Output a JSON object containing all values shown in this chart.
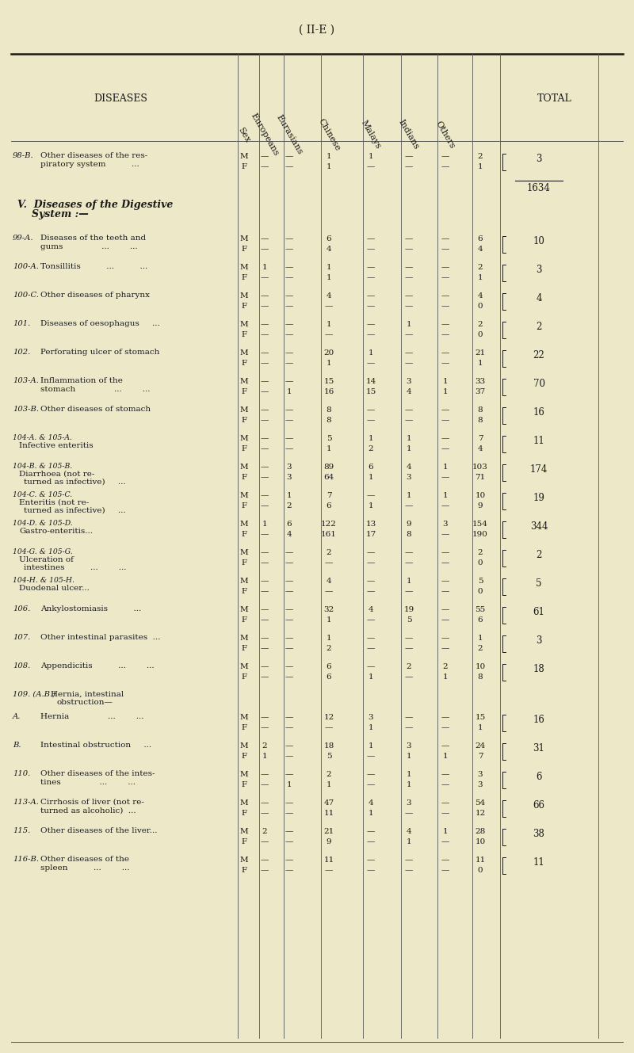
{
  "page_title": "( II-E )",
  "bg_color": "#ede8c8",
  "rows": [
    {
      "code": "98-B.",
      "disease": [
        "Other diseases of the res-",
        "    piratory system          ..."
      ],
      "bold": false,
      "M": [
        "—",
        "—",
        "1",
        "1",
        "—",
        "—",
        "2"
      ],
      "F": [
        "—",
        "—",
        "1",
        "—",
        "—",
        "—",
        "1"
      ],
      "total": "3",
      "type": "data"
    },
    {
      "code": "",
      "disease": [
        "1634"
      ],
      "bold": false,
      "M": null,
      "F": null,
      "total": "",
      "type": "note_1634"
    },
    {
      "code": "",
      "disease": [
        "V.  Diseases of the Digestive",
        "        System :—"
      ],
      "bold": true,
      "M": null,
      "F": null,
      "total": "",
      "type": "section_header"
    },
    {
      "code": "99-A.",
      "disease": [
        "Diseases of the teeth and",
        "    gums               ...        ..."
      ],
      "bold": false,
      "M": [
        "—",
        "—",
        "6",
        "—",
        "—",
        "—",
        "6"
      ],
      "F": [
        "—",
        "—",
        "4",
        "—",
        "—",
        "—",
        "4"
      ],
      "total": "10",
      "type": "data"
    },
    {
      "code": "100-A.",
      "disease": [
        "Tonsillitis          ...          ..."
      ],
      "bold": false,
      "M": [
        "1",
        "—",
        "1",
        "—",
        "—",
        "—",
        "2"
      ],
      "F": [
        "—",
        "—",
        "1",
        "—",
        "—",
        "—",
        "1"
      ],
      "total": "3",
      "type": "data"
    },
    {
      "code": "100-C.",
      "disease": [
        "Other diseases of pharynx"
      ],
      "bold": false,
      "M": [
        "—",
        "—",
        "4",
        "—",
        "—",
        "—",
        "4"
      ],
      "F": [
        "—",
        "—",
        "—",
        "—",
        "—",
        "—",
        "0"
      ],
      "total": "4",
      "type": "data"
    },
    {
      "code": "101.",
      "disease": [
        "Diseases of oesophagus     ..."
      ],
      "bold": false,
      "M": [
        "—",
        "—",
        "1",
        "—",
        "1",
        "—",
        "2"
      ],
      "F": [
        "—",
        "—",
        "—",
        "—",
        "—",
        "—",
        "0"
      ],
      "total": "2",
      "type": "data"
    },
    {
      "code": "102.",
      "disease": [
        "Perforating ulcer of stomach"
      ],
      "bold": false,
      "M": [
        "—",
        "—",
        "20",
        "1",
        "—",
        "—",
        "21"
      ],
      "F": [
        "—",
        "—",
        "1",
        "—",
        "—",
        "—",
        "1"
      ],
      "total": "22",
      "type": "data"
    },
    {
      "code": "103-A.",
      "disease": [
        "Inflammation of the",
        "    stomach               ...        ..."
      ],
      "bold": false,
      "M": [
        "—",
        "—",
        "15",
        "14",
        "3",
        "1",
        "33"
      ],
      "F": [
        "—",
        "1",
        "16",
        "15",
        "4",
        "1",
        "37"
      ],
      "total": "70",
      "type": "data"
    },
    {
      "code": "103-B.",
      "disease": [
        "Other diseases of stomach"
      ],
      "bold": false,
      "M": [
        "—",
        "—",
        "8",
        "—",
        "—",
        "—",
        "8"
      ],
      "F": [
        "—",
        "—",
        "8",
        "—",
        "—",
        "—",
        "8"
      ],
      "total": "16",
      "type": "data"
    },
    {
      "code": "104-A. & 105-A.",
      "disease": [
        "Infective enteritis"
      ],
      "bold": false,
      "M": [
        "—",
        "—",
        "5",
        "1",
        "1",
        "—",
        "7"
      ],
      "F": [
        "—",
        "—",
        "1",
        "2",
        "1",
        "—",
        "4"
      ],
      "total": "11",
      "type": "data"
    },
    {
      "code": "104-B. & 105-B.",
      "disease": [
        "Diarrhoea (not re-",
        "    turned as infective)     ..."
      ],
      "bold": false,
      "M": [
        "—",
        "3",
        "89",
        "6",
        "4",
        "1",
        "103"
      ],
      "F": [
        "—",
        "3",
        "64",
        "1",
        "3",
        "—",
        "71"
      ],
      "total": "174",
      "type": "data"
    },
    {
      "code": "104-C. & 105-C.",
      "disease": [
        "Enteritis (not re-",
        "    turned as infective)     ..."
      ],
      "bold": false,
      "M": [
        "—",
        "1",
        "7",
        "—",
        "1",
        "1",
        "10"
      ],
      "F": [
        "—",
        "2",
        "6",
        "1",
        "—",
        "—",
        "9"
      ],
      "total": "19",
      "type": "data"
    },
    {
      "code": "104-D. & 105-D.",
      "disease": [
        "Gastro-enteritis..."
      ],
      "bold": false,
      "M": [
        "1",
        "6",
        "122",
        "13",
        "9",
        "3",
        "154"
      ],
      "F": [
        "—",
        "4",
        "161",
        "17",
        "8",
        "—",
        "190"
      ],
      "total": "344",
      "type": "data"
    },
    {
      "code": "104-G. & 105-G.",
      "disease": [
        "Ulceration of",
        "    intestines          ...        ..."
      ],
      "bold": false,
      "M": [
        "—",
        "—",
        "2",
        "—",
        "—",
        "—",
        "2"
      ],
      "F": [
        "—",
        "—",
        "—",
        "—",
        "—",
        "—",
        "0"
      ],
      "total": "2",
      "type": "data"
    },
    {
      "code": "104-H. & 105-H.",
      "disease": [
        "Duodenal ulcer..."
      ],
      "bold": false,
      "M": [
        "—",
        "—",
        "4",
        "—",
        "1",
        "—",
        "5"
      ],
      "F": [
        "—",
        "—",
        "—",
        "—",
        "—",
        "—",
        "0"
      ],
      "total": "5",
      "type": "data"
    },
    {
      "code": "106.",
      "disease": [
        "Ankylostomiasis          ..."
      ],
      "bold": false,
      "M": [
        "—",
        "—",
        "32",
        "4",
        "19",
        "—",
        "55"
      ],
      "F": [
        "—",
        "—",
        "1",
        "—",
        "5",
        "—",
        "6"
      ],
      "total": "61",
      "type": "data"
    },
    {
      "code": "107.",
      "disease": [
        "Other intestinal parasites  ..."
      ],
      "bold": false,
      "M": [
        "—",
        "—",
        "1",
        "—",
        "—",
        "—",
        "1"
      ],
      "F": [
        "—",
        "—",
        "2",
        "—",
        "—",
        "—",
        "2"
      ],
      "total": "3",
      "type": "data"
    },
    {
      "code": "108.",
      "disease": [
        "Appendicitis          ...        ..."
      ],
      "bold": false,
      "M": [
        "—",
        "—",
        "6",
        "—",
        "2",
        "2",
        "10"
      ],
      "F": [
        "—",
        "—",
        "6",
        "1",
        "—",
        "1",
        "8"
      ],
      "total": "18",
      "type": "data"
    },
    {
      "code": "109. (A.B.)",
      "disease": [
        "Hernia, intestinal",
        "    obstruction—"
      ],
      "bold": false,
      "M": null,
      "F": null,
      "total": "",
      "type": "sub_header"
    },
    {
      "code": "A.",
      "disease": [
        "Hernia               ...        ..."
      ],
      "bold": false,
      "M": [
        "—",
        "—",
        "12",
        "3",
        "—",
        "—",
        "15"
      ],
      "F": [
        "—",
        "—",
        "—",
        "1",
        "—",
        "—",
        "1"
      ],
      "total": "16",
      "type": "data"
    },
    {
      "code": "B.",
      "disease": [
        "Intestinal obstruction     ..."
      ],
      "bold": false,
      "M": [
        "2",
        "—",
        "18",
        "1",
        "3",
        "—",
        "24"
      ],
      "F": [
        "1",
        "—",
        "5",
        "—",
        "1",
        "1",
        "7"
      ],
      "total": "31",
      "type": "data"
    },
    {
      "code": "110.",
      "disease": [
        "Other diseases of the intes-",
        "    tines               ...        ..."
      ],
      "bold": false,
      "M": [
        "—",
        "—",
        "2",
        "—",
        "1",
        "—",
        "3"
      ],
      "F": [
        "—",
        "1",
        "1",
        "—",
        "1",
        "—",
        "3"
      ],
      "total": "6",
      "type": "data"
    },
    {
      "code": "113-A.",
      "disease": [
        "Cirrhosis of liver (not re-",
        "    turned as alcoholic)  ..."
      ],
      "bold": false,
      "M": [
        "—",
        "—",
        "47",
        "4",
        "3",
        "—",
        "54"
      ],
      "F": [
        "—",
        "—",
        "11",
        "1",
        "—",
        "—",
        "12"
      ],
      "total": "66",
      "type": "data"
    },
    {
      "code": "115.",
      "disease": [
        "Other diseases of the liver..."
      ],
      "bold": false,
      "M": [
        "2",
        "—",
        "21",
        "—",
        "4",
        "1",
        "28"
      ],
      "F": [
        "—",
        "—",
        "9",
        "—",
        "1",
        "—",
        "10"
      ],
      "total": "38",
      "type": "data"
    },
    {
      "code": "116-B.",
      "disease": [
        "Other diseases of the",
        "    spleen          ...        ..."
      ],
      "bold": false,
      "M": [
        "—",
        "—",
        "11",
        "—",
        "—",
        "—",
        "11"
      ],
      "F": [
        "—",
        "—",
        "—",
        "—",
        "—",
        "—",
        "0"
      ],
      "total": "11",
      "type": "data"
    }
  ]
}
